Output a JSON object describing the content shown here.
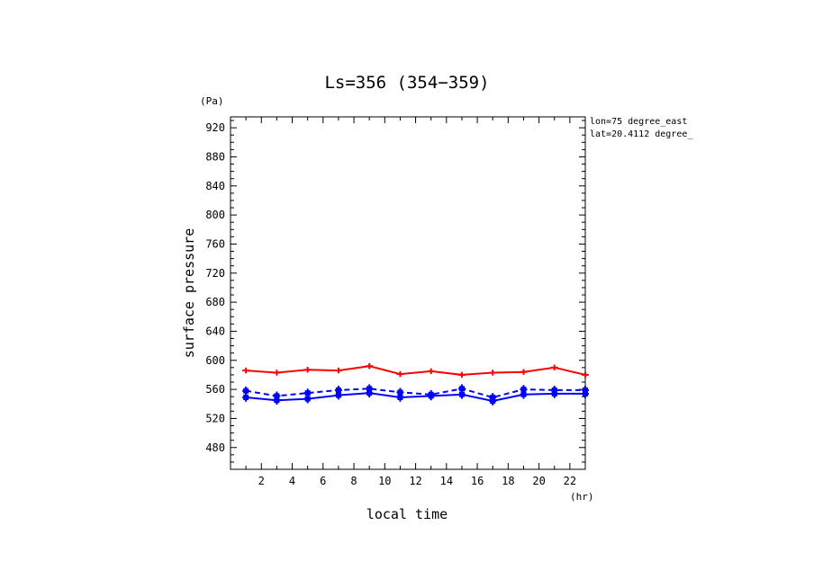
{
  "title": "Ls=356 (354−359)",
  "y_unit": "(Pa)",
  "x_unit": "(hr)",
  "info_lines": [
    "lon=75 degree_east",
    "lat=20.4112 degree_"
  ],
  "chart_data": {
    "type": "line",
    "title": "Ls=356 (354−359)",
    "xlabel": "local time",
    "ylabel": "surface pressure",
    "xlim": [
      0,
      23
    ],
    "ylim": [
      450,
      935
    ],
    "xticks": [
      2,
      4,
      6,
      8,
      10,
      12,
      14,
      16,
      18,
      20,
      22
    ],
    "yticks": [
      480,
      520,
      560,
      600,
      640,
      680,
      720,
      760,
      800,
      840,
      880,
      920
    ],
    "x": [
      1,
      3,
      5,
      7,
      9,
      11,
      13,
      15,
      17,
      19,
      21,
      23
    ],
    "series": [
      {
        "color": "#ff0000",
        "dash": "solid",
        "err": 4,
        "values": [
          586,
          583,
          587,
          586,
          592,
          581,
          585,
          580,
          583,
          584,
          590,
          580
        ]
      },
      {
        "color": "#0000ff",
        "dash": "dashed",
        "err": 6,
        "values": [
          558,
          551,
          555,
          559,
          561,
          556,
          553,
          561,
          549,
          560,
          559,
          559
        ]
      },
      {
        "color": "#0000ff",
        "dash": "solid",
        "err": 6,
        "values": [
          549,
          545,
          547,
          552,
          555,
          549,
          551,
          553,
          544,
          553,
          554,
          554
        ]
      }
    ],
    "colors": {
      "red": "#ff0000",
      "blue": "#0000ff"
    }
  }
}
